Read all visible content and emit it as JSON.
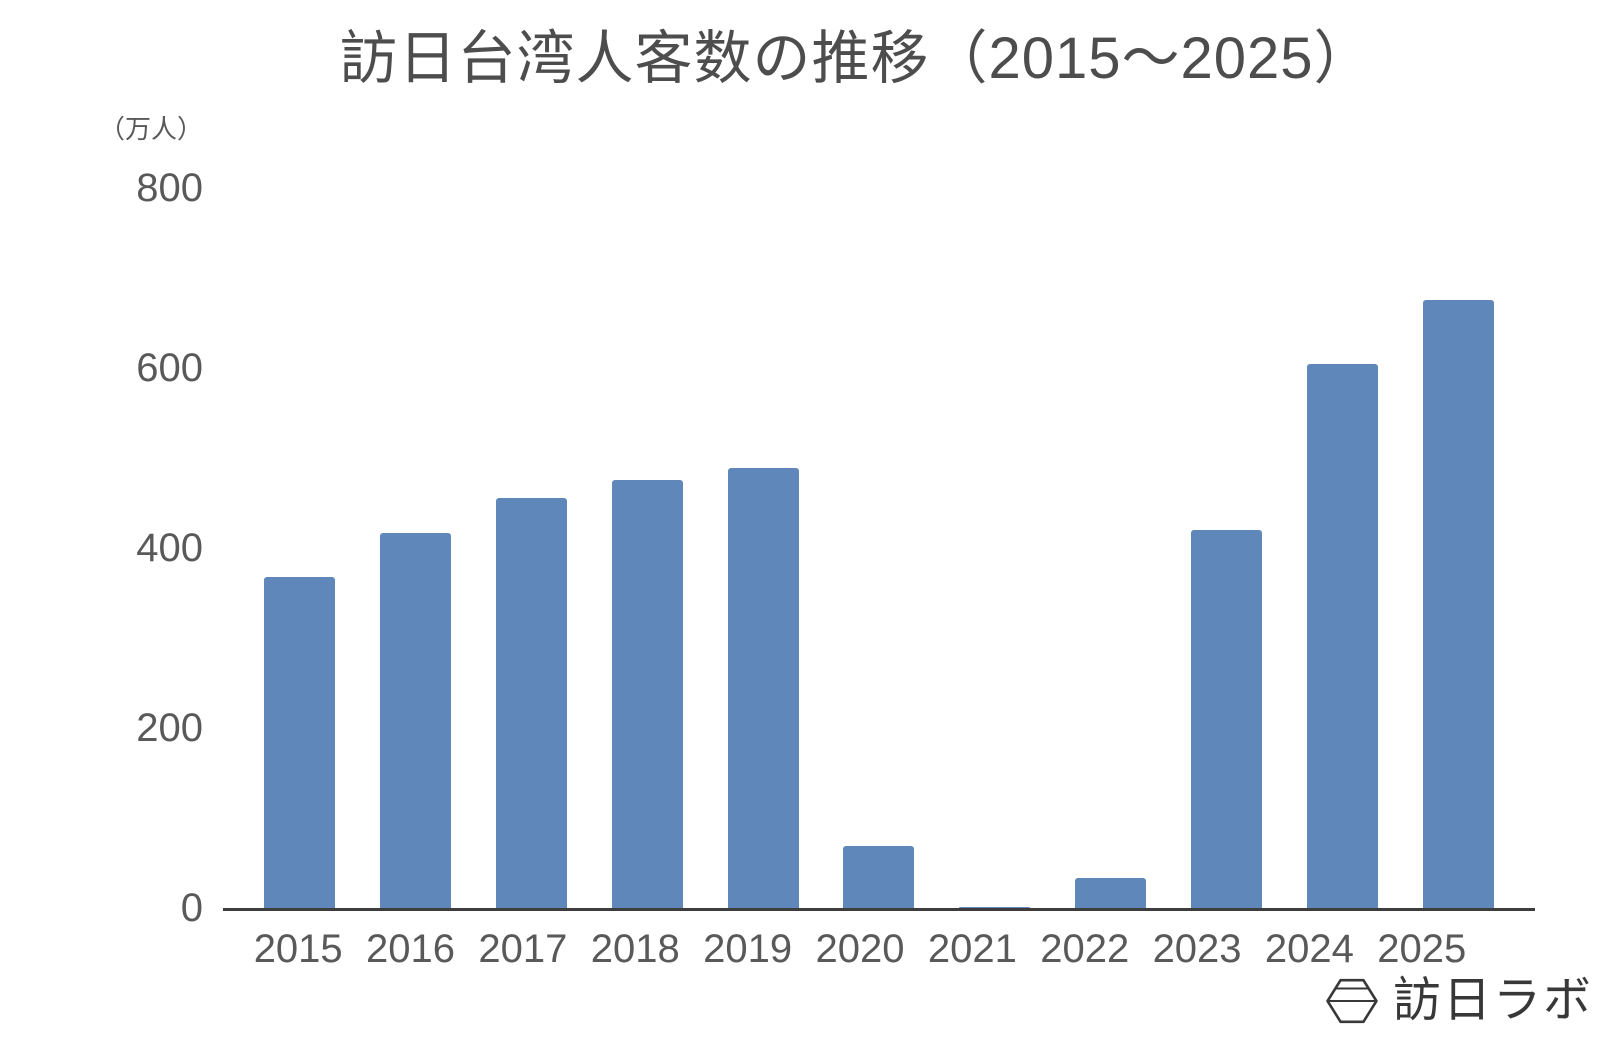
{
  "chart_data": {
    "type": "bar",
    "title": "訪日台湾人客数の推移（2015〜2025）",
    "xlabel": "",
    "ylabel": "（万人）",
    "categories": [
      "2015",
      "2016",
      "2017",
      "2018",
      "2019",
      "2020",
      "2021",
      "2022",
      "2023",
      "2024",
      "2025"
    ],
    "values": [
      368,
      417,
      456,
      476,
      489,
      69,
      1,
      33,
      420,
      604,
      676
    ],
    "ylim": [
      0,
      800
    ],
    "yticks": [
      0,
      200,
      400,
      600,
      800
    ],
    "grid": false,
    "legend": null,
    "bar_color": "#5f87b9"
  },
  "branding": {
    "logo_text": "訪日ラボ",
    "logo_icon": "hexagon-icon"
  },
  "colors": {
    "background": "#ffffff",
    "title_text": "#4d4d4d",
    "tick_text": "#595959",
    "axis_line": "#3d3d3d",
    "bar_fill": "#5f87b9",
    "logo": "#383838"
  }
}
